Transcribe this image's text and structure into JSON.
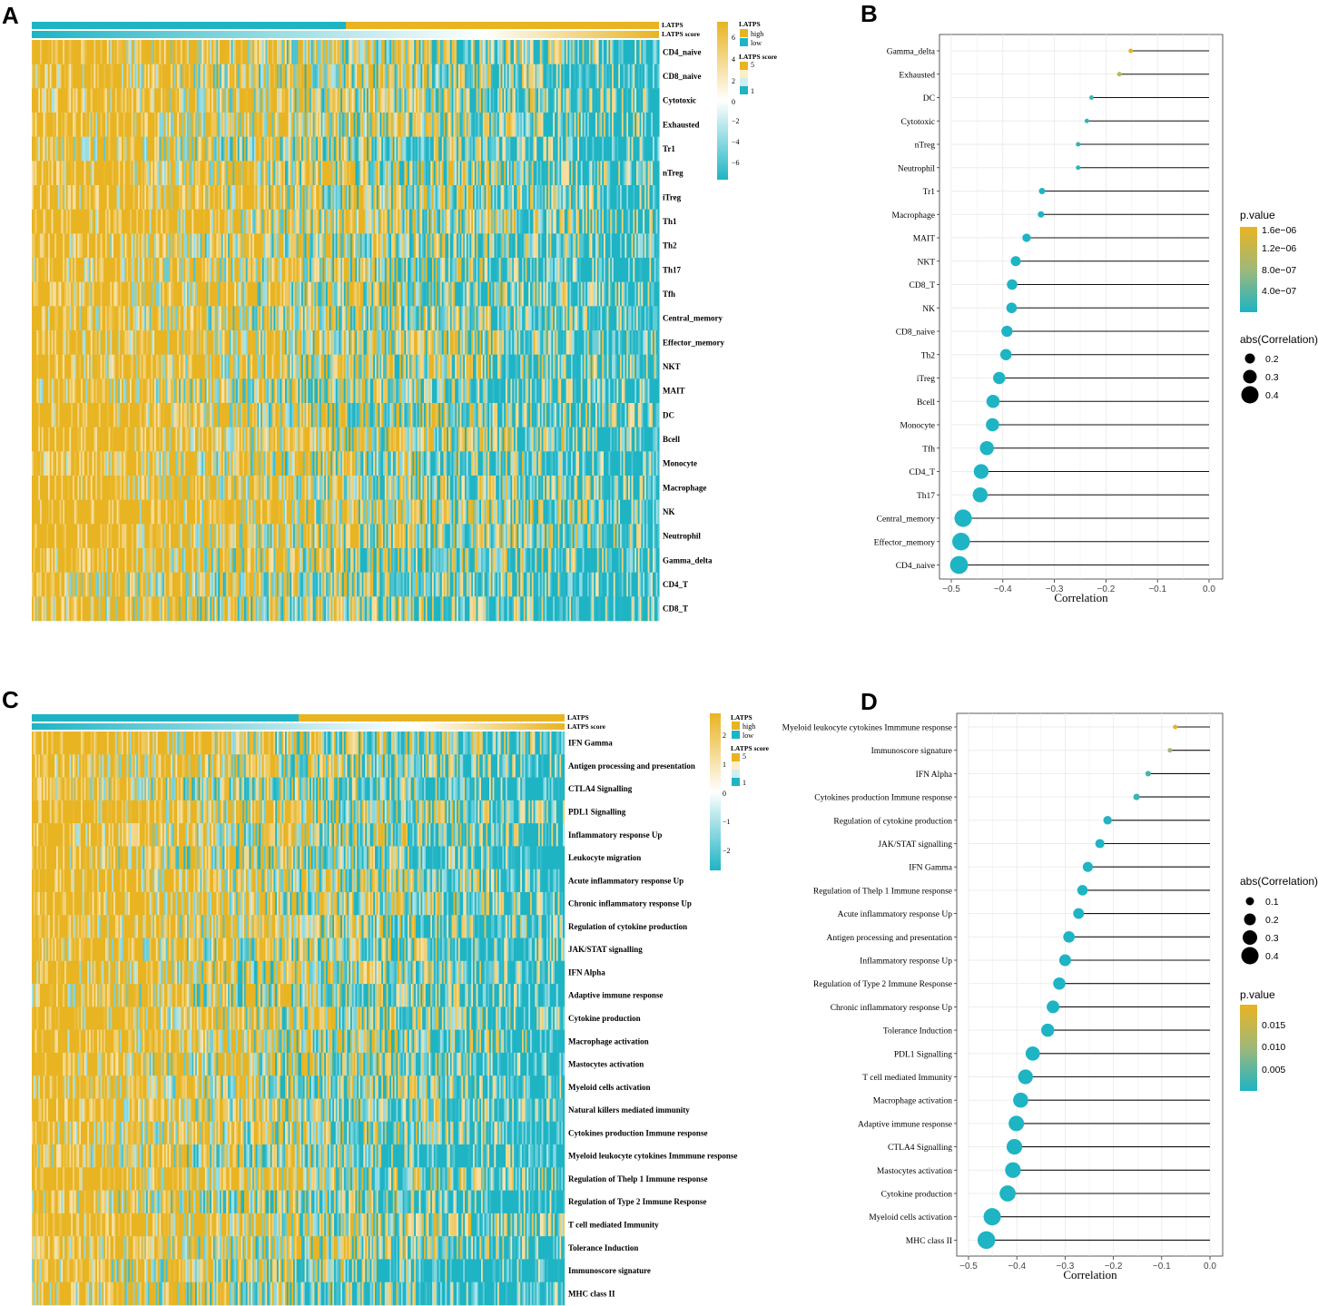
{
  "panels": {
    "a": "A",
    "b": "B",
    "c": "C",
    "d": "D"
  },
  "colors": {
    "low": "#1eb4c4",
    "high": "#e8b422",
    "mid": "#ffffff",
    "grid": "#ebebeb",
    "panel_border": "#333333"
  },
  "heatmap_A": {
    "annotation_labels": [
      "LATPS",
      "LATPS score"
    ],
    "split_fraction_low": 0.5,
    "rows": [
      "CD4_naive",
      "CD8_naive",
      "Cytotoxic",
      "Exhausted",
      "Tr1",
      "nTreg",
      "iTreg",
      "Th1",
      "Th2",
      "Th17",
      "Tfh",
      "Central_memory",
      "Effector_memory",
      "NKT",
      "MAIT",
      "DC",
      "Bcell",
      "Monocyte",
      "Macrophage",
      "NK",
      "Neutrophil",
      "Gamma_delta",
      "CD4_T",
      "CD8_T"
    ],
    "legend": {
      "scale_ticks": [
        "6",
        "4",
        "2",
        "0",
        "−2",
        "−4",
        "−6"
      ],
      "latps_title": "LATPS",
      "latps_items": [
        "high",
        "low"
      ],
      "score_title": "LATPS score",
      "score_ticks": [
        "5",
        "1"
      ]
    }
  },
  "heatmap_C": {
    "annotation_labels": [
      "LATPS",
      "LATPS score"
    ],
    "split_fraction_low": 0.5,
    "rows": [
      "IFN Gamma",
      "Antigen processing and presentation",
      "CTLA4 Signalling",
      "PDL1 Signalling",
      "Inflammatory response Up",
      "Leukocyte migration",
      "Acute inflammatory response Up",
      "Chronic inflammatory response Up",
      "Regulation of cytokine production",
      "JAK/STAT signalling",
      "IFN Alpha",
      "Adaptive immune response",
      "Cytokine production",
      "Macrophage activation",
      "Mastocytes activation",
      "Myeloid cells activation",
      "Natural killers mediated immunity",
      "Cytokines production Immune response",
      "Myeloid leukocyte cytokines Immmune response",
      "Regulation of Thelp 1 Immune response",
      "Regulation of Type 2 Immune Response",
      "T cell mediated Immunity",
      "Tolerance Induction",
      "Immunoscore signature",
      "MHC class II"
    ],
    "legend": {
      "scale_ticks": [
        "2",
        "1",
        "0",
        "−1",
        "−2"
      ],
      "latps_title": "LATPS",
      "latps_items": [
        "high",
        "low"
      ],
      "score_title": "LATPS score",
      "score_ticks": [
        "5",
        "1"
      ]
    }
  },
  "chart_data": [
    {
      "type": "lollipop",
      "panel": "B",
      "xlabel": "Correlation",
      "xlim": [
        -0.5,
        0.0
      ],
      "xticks": [
        "−0.5",
        "−0.4",
        "−0.3",
        "−0.2",
        "−0.1",
        "0.0"
      ],
      "categories": [
        "Gamma_delta",
        "Exhausted",
        "DC",
        "Cytotoxic",
        "nTreg",
        "Neutrophil",
        "Tr1",
        "Macrophage",
        "MAIT",
        "NKT",
        "CD8_T",
        "NK",
        "CD8_naive",
        "Th2",
        "iTreg",
        "Bcell",
        "Monocyte",
        "Tfh",
        "CD4_T",
        "Th17",
        "Central_memory",
        "Effector_memory",
        "CD4_naive"
      ],
      "values": [
        -0.152,
        -0.174,
        -0.228,
        -0.237,
        -0.254,
        -0.254,
        -0.324,
        -0.326,
        -0.354,
        -0.375,
        -0.382,
        -0.383,
        -0.392,
        -0.394,
        -0.407,
        -0.419,
        -0.42,
        -0.431,
        -0.442,
        -0.444,
        -0.477,
        -0.481,
        -0.485
      ],
      "pvalue": [
        1.6e-06,
        1.2e-06,
        2e-07,
        1e-07,
        1e-07,
        1e-07,
        0,
        0,
        0,
        0,
        0,
        0,
        0,
        0,
        0,
        0,
        0,
        0,
        0,
        0,
        0,
        0,
        0
      ],
      "legend_pvalue": {
        "title": "p.value",
        "ticks": [
          "1.6e−06",
          "1.2e−06",
          "8.0e−07",
          "4.0e−07"
        ],
        "range": [
          0,
          1.7e-06
        ]
      },
      "legend_size": {
        "title": "abs(Correlation)",
        "ticks": [
          "0.2",
          "0.3",
          "0.4"
        ]
      }
    },
    {
      "type": "lollipop",
      "panel": "D",
      "xlabel": "Correlation",
      "xlim": [
        -0.5,
        0.0
      ],
      "xticks": [
        "−0.5",
        "−0.4",
        "−0.3",
        "−0.2",
        "−0.1",
        "0.0"
      ],
      "categories": [
        "Myeloid leukocyte cytokines Immmune response",
        "Immunoscore signature",
        "IFN Alpha",
        "Cytokines production Immune response",
        "Regulation of cytokine production",
        "JAK/STAT signalling",
        "IFN Gamma",
        "Regulation of Thelp 1 Immune response",
        "Acute inflammatory response Up",
        "Antigen processing and presentation",
        "Inflammatory response Up",
        "Regulation of Type 2 Immune Response",
        "Chronic inflammatory response Up",
        "Tolerance Induction",
        "PDL1 Signalling",
        "T cell mediated Immunity",
        "Macrophage activation",
        "Adaptive immune response",
        "CTLA4 Signalling",
        "Mastocytes activation",
        "Cytokine production",
        "Myeloid cells activation",
        "MHC class II"
      ],
      "values": [
        -0.072,
        -0.083,
        -0.128,
        -0.152,
        -0.212,
        -0.228,
        -0.253,
        -0.264,
        -0.272,
        -0.292,
        -0.3,
        -0.312,
        -0.325,
        -0.336,
        -0.367,
        -0.382,
        -0.392,
        -0.401,
        -0.405,
        -0.408,
        -0.419,
        -0.451,
        -0.463
      ],
      "pvalue": [
        0.019,
        0.01,
        0.003,
        0.002,
        0.0005,
        0.0003,
        0.0002,
        0.0001,
        0.0001,
        0,
        0,
        0,
        0,
        0,
        0,
        0,
        0,
        0,
        0,
        0,
        0,
        0,
        0
      ],
      "legend_pvalue": {
        "title": "p.value",
        "ticks": [
          "0.015",
          "0.010",
          "0.005"
        ],
        "range": [
          0,
          0.02
        ]
      },
      "legend_size": {
        "title": "abs(Correlation)",
        "ticks": [
          "0.1",
          "0.2",
          "0.3",
          "0.4"
        ]
      }
    }
  ]
}
